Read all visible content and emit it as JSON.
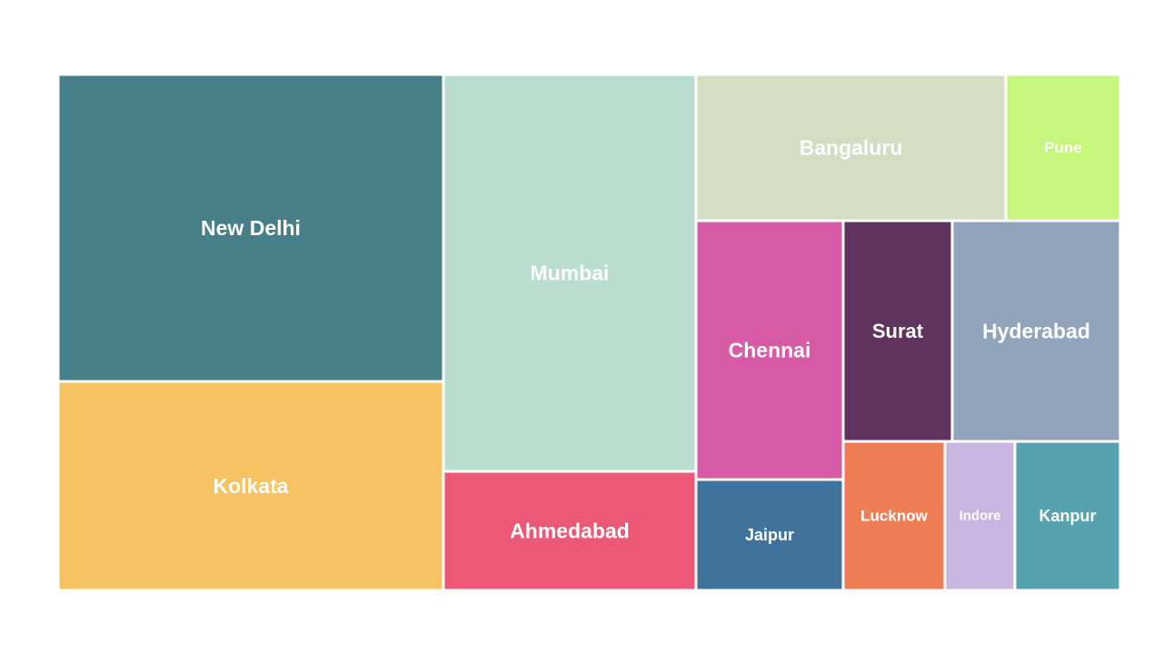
{
  "chart_data": {
    "type": "treemap",
    "items": [
      {
        "label": "New Delhi",
        "color": "#477f88"
      },
      {
        "label": "Kolkata",
        "color": "#f7c362"
      },
      {
        "label": "Mumbai",
        "color": "#b9ddce"
      },
      {
        "label": "Ahmedabad",
        "color": "#ee5877"
      },
      {
        "label": "Bangaluru",
        "color": "#d4dcc2"
      },
      {
        "label": "Pune",
        "color": "#c6f77c"
      },
      {
        "label": "Chennai",
        "color": "#d75aa6"
      },
      {
        "label": "Surat",
        "color": "#5f335d"
      },
      {
        "label": "Hyderabad",
        "color": "#92a4bc"
      },
      {
        "label": "Jaipur",
        "color": "#40739b"
      },
      {
        "label": "Lucknow",
        "color": "#f07e55"
      },
      {
        "label": "Indore",
        "color": "#c9b6e0"
      },
      {
        "label": "Kanpur",
        "color": "#57a2af"
      }
    ]
  }
}
